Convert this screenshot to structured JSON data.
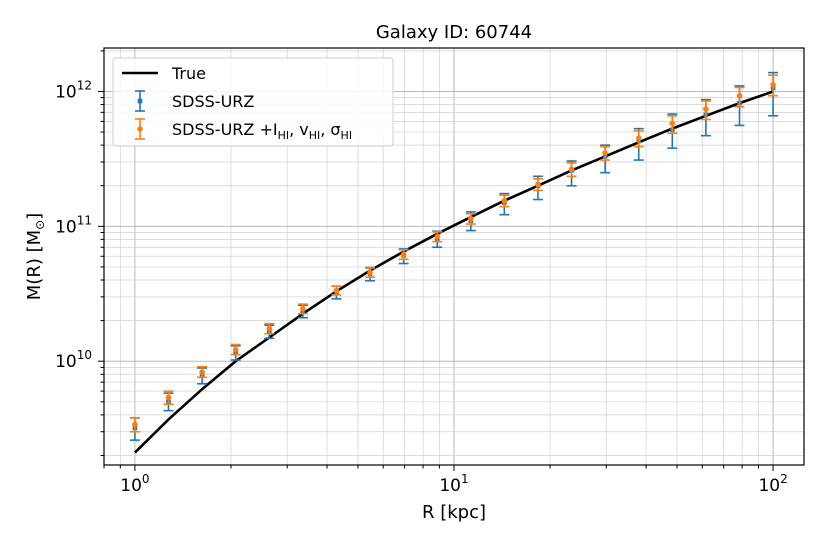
{
  "chart_data": {
    "type": "scatter",
    "title": "Galaxy ID: 60744",
    "xlabel": "R [kpc]",
    "ylabel_main": "M(R) [M",
    "ylabel_sub": "⊙",
    "ylabel_close": "]",
    "xscale": "log",
    "yscale": "log",
    "xlim": [
      0.8,
      125
    ],
    "ylim": [
      1700000000.0,
      2100000000000.0
    ],
    "grid": "both",
    "legend_position": "top-left",
    "x_ticks": [
      {
        "value": 1,
        "base": "10",
        "exp": "0"
      },
      {
        "value": 10,
        "base": "10",
        "exp": "1"
      },
      {
        "value": 100,
        "base": "10",
        "exp": "2"
      }
    ],
    "y_ticks": [
      {
        "value": 10000000000.0,
        "base": "10",
        "exp": "10"
      },
      {
        "value": 100000000000.0,
        "base": "10",
        "exp": "11"
      },
      {
        "value": 1000000000000.0,
        "base": "10",
        "exp": "12"
      }
    ],
    "series": [
      {
        "name": "True",
        "kind": "line",
        "color": "#000000",
        "x": [
          1.0,
          1.274,
          1.624,
          2.069,
          2.637,
          3.36,
          4.281,
          5.456,
          6.952,
          8.859,
          11.29,
          14.38,
          18.33,
          23.36,
          29.76,
          37.93,
          48.33,
          61.58,
          78.48,
          100.0
        ],
        "y": [
          2100000000.0,
          3700000000.0,
          6200000000.0,
          10000000000.0,
          15000000000.0,
          22500000000.0,
          33000000000.0,
          47000000000.0,
          65000000000.0,
          88000000000.0,
          117000000000.0,
          155000000000.0,
          200000000000.0,
          260000000000.0,
          330000000000.0,
          420000000000.0,
          530000000000.0,
          660000000000.0,
          820000000000.0,
          1000000000000.0
        ]
      },
      {
        "name": "SDSS-URZ",
        "kind": "errorbar",
        "color": "#1f77b4",
        "x": [
          1.0,
          1.274,
          1.624,
          2.069,
          2.637,
          3.36,
          4.281,
          5.456,
          6.952,
          8.859,
          11.29,
          14.38,
          18.33,
          23.36,
          29.76,
          37.93,
          48.33,
          61.58,
          78.48,
          100.0
        ],
        "y": [
          3200000000.0,
          5000000000.0,
          7800000000.0,
          11500000000.0,
          16500000000.0,
          23500000000.0,
          32500000000.0,
          44500000000.0,
          61000000000.0,
          81000000000.0,
          110000000000.0,
          150000000000.0,
          200000000000.0,
          260000000000.0,
          330000000000.0,
          430000000000.0,
          520000000000.0,
          670000000000.0,
          820000000000.0,
          1060000000000.0
        ],
        "y_low": [
          2600000000.0,
          4300000000.0,
          6800000000.0,
          10200000000.0,
          14800000000.0,
          21000000000.0,
          29000000000.0,
          39500000000.0,
          53000000000.0,
          70000000000.0,
          93000000000.0,
          122000000000.0,
          158000000000.0,
          200000000000.0,
          250000000000.0,
          310000000000.0,
          380000000000.0,
          470000000000.0,
          560000000000.0,
          660000000000.0
        ],
        "y_high": [
          3800000000.0,
          5800000000.0,
          8900000000.0,
          13000000000.0,
          18500000000.0,
          26000000000.0,
          36000000000.0,
          49500000000.0,
          68000000000.0,
          92000000000.0,
          128000000000.0,
          175000000000.0,
          235000000000.0,
          305000000000.0,
          400000000000.0,
          530000000000.0,
          680000000000.0,
          870000000000.0,
          1100000000000.0,
          1380000000000.0
        ]
      },
      {
        "name": "SDSS-URZ +I_HI, v_HI, σ_HI",
        "kind": "errorbar",
        "color": "#ff7f0e",
        "x": [
          1.0,
          1.274,
          1.624,
          2.069,
          2.637,
          3.36,
          4.281,
          5.456,
          6.952,
          8.859,
          11.29,
          14.38,
          18.33,
          23.36,
          29.76,
          37.93,
          48.33,
          61.58,
          78.48,
          100.0
        ],
        "y": [
          3400000000.0,
          5400000000.0,
          8300000000.0,
          12200000000.0,
          17500000000.0,
          24500000000.0,
          33500000000.0,
          45500000000.0,
          62000000000.0,
          84000000000.0,
          114000000000.0,
          155000000000.0,
          205000000000.0,
          265000000000.0,
          350000000000.0,
          450000000000.0,
          580000000000.0,
          740000000000.0,
          930000000000.0,
          1120000000000.0
        ],
        "y_low": [
          3000000000.0,
          4800000000.0,
          7600000000.0,
          11200000000.0,
          16000000000.0,
          22500000000.0,
          31000000000.0,
          42000000000.0,
          57000000000.0,
          77000000000.0,
          104000000000.0,
          140000000000.0,
          185000000000.0,
          235000000000.0,
          310000000000.0,
          390000000000.0,
          490000000000.0,
          620000000000.0,
          770000000000.0,
          930000000000.0
        ],
        "y_high": [
          3800000000.0,
          6000000000.0,
          9100000000.0,
          13300000000.0,
          19000000000.0,
          26500000000.0,
          36000000000.0,
          49000000000.0,
          67000000000.0,
          91000000000.0,
          124000000000.0,
          170000000000.0,
          225000000000.0,
          295000000000.0,
          390000000000.0,
          510000000000.0,
          660000000000.0,
          850000000000.0,
          1070000000000.0,
          1320000000000.0
        ]
      }
    ],
    "legend": [
      {
        "text": "True"
      },
      {
        "text": "SDSS-URZ"
      },
      {
        "parts": [
          {
            "t": "SDSS-URZ +I",
            "sub": false
          },
          {
            "t": "HI",
            "sub": true
          },
          {
            "t": ", v",
            "sub": false
          },
          {
            "t": "HI",
            "sub": true
          },
          {
            "t": ", σ",
            "sub": false
          },
          {
            "t": "HI",
            "sub": true
          }
        ]
      }
    ]
  }
}
